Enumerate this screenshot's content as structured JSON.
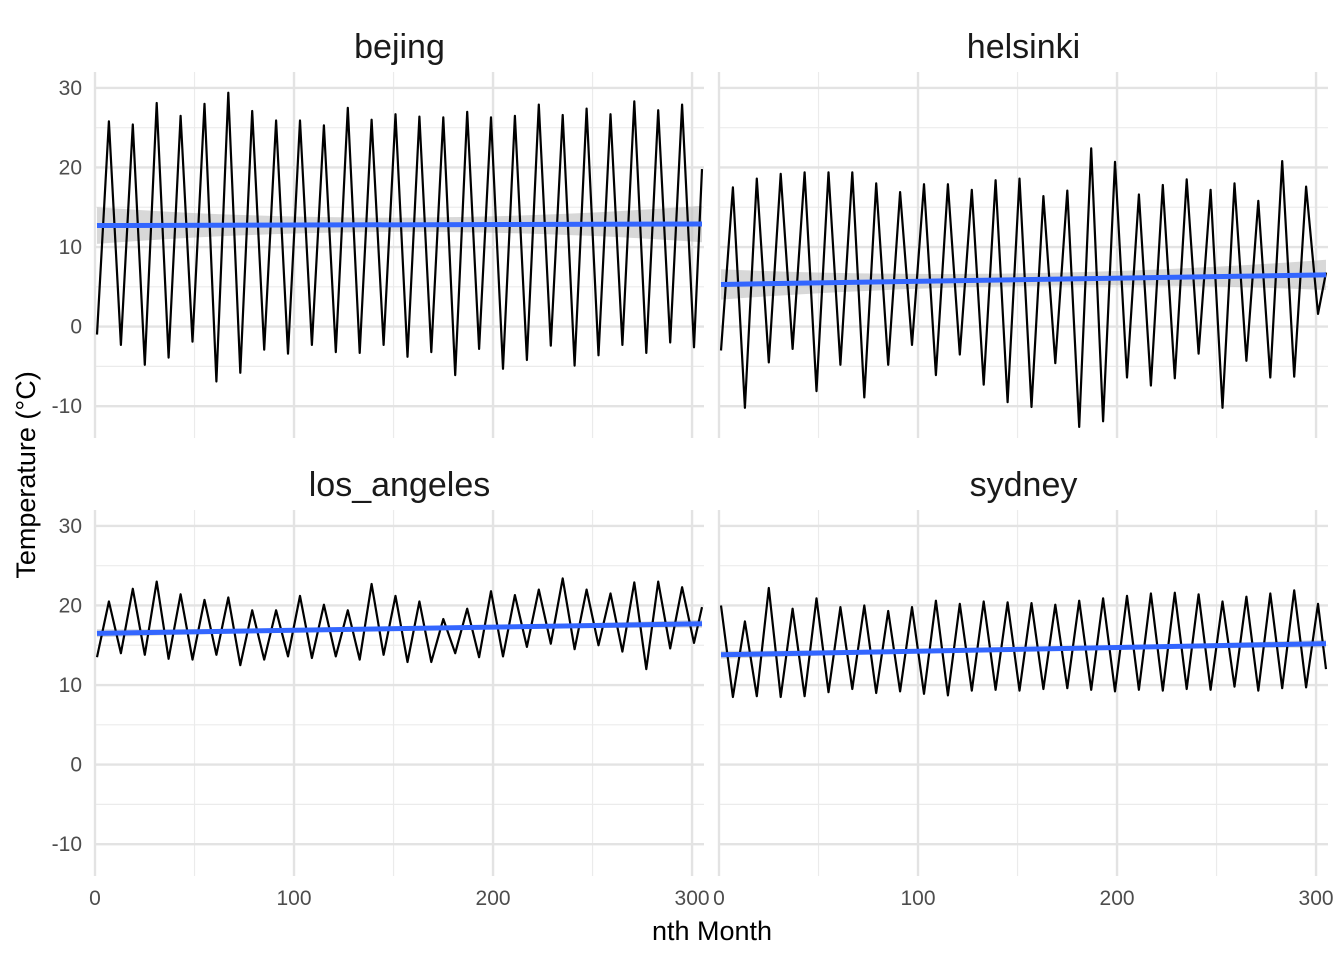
{
  "chart_data": {
    "type": "line",
    "facets": [
      "bejing",
      "helsinki",
      "los_angeles",
      "sydney"
    ],
    "xlabel": "nth Month",
    "ylabel": "Temperature (°C)",
    "xlim": [
      0,
      306
    ],
    "ylim": [
      -14,
      32
    ],
    "x_ticks": [
      0,
      100,
      200,
      300
    ],
    "y_ticks": [
      -10,
      0,
      10,
      20,
      30
    ],
    "grid": true,
    "series_colors": {
      "temperature": "#000000",
      "trend": "#3366FF",
      "confidence_band": "#BEBEBE"
    },
    "panels": [
      {
        "name": "bejing",
        "x": [
          1,
          7,
          13,
          19,
          25,
          31,
          37,
          43,
          49,
          55,
          61,
          67,
          73,
          79,
          85,
          91,
          97,
          103,
          109,
          115,
          121,
          127,
          133,
          139,
          145,
          151,
          157,
          163,
          169,
          175,
          181,
          187,
          193,
          199,
          205,
          211,
          217,
          223,
          229,
          235,
          241,
          247,
          253,
          259,
          265,
          271,
          277,
          283,
          289,
          295,
          301,
          305
        ],
        "y": [
          -1,
          25.8,
          -2.3,
          25.4,
          -4.8,
          28.1,
          -3.9,
          26.5,
          -1.9,
          28,
          -6.9,
          29.4,
          -5.8,
          27.1,
          -2.9,
          25.9,
          -3.4,
          25.9,
          -2.3,
          25.3,
          -3.2,
          27.5,
          -3.3,
          26,
          -2.3,
          26.7,
          -3.8,
          26.4,
          -3.2,
          26.3,
          -6.1,
          27,
          -2.8,
          26.3,
          -5.3,
          26.5,
          -4.2,
          27.9,
          -2.4,
          26.6,
          -4.9,
          27.4,
          -3.6,
          26.7,
          -2.3,
          28.3,
          -3.3,
          27.2,
          -2,
          27.9,
          -2.6,
          19.8
        ],
        "trend_start": 12.7,
        "trend_end": 12.9,
        "band_halfwidth_start": 2.3,
        "band_halfwidth_mid": 0.9,
        "band_halfwidth_end": 2.3
      },
      {
        "name": "helsinki",
        "x": [
          1,
          7,
          13,
          19,
          25,
          31,
          37,
          43,
          49,
          55,
          61,
          67,
          73,
          79,
          85,
          91,
          97,
          103,
          109,
          115,
          121,
          127,
          133,
          139,
          145,
          151,
          157,
          163,
          169,
          175,
          181,
          187,
          193,
          199,
          205,
          211,
          217,
          223,
          229,
          235,
          241,
          247,
          253,
          259,
          265,
          271,
          277,
          283,
          289,
          295,
          301,
          305
        ],
        "y": [
          -3,
          17.5,
          -10.2,
          18.6,
          -4.5,
          19.2,
          -2.8,
          19.4,
          -8.1,
          19.4,
          -4.8,
          19.4,
          -8.9,
          18,
          -4.8,
          16.9,
          -2.3,
          17.9,
          -6.1,
          17.9,
          -3.5,
          17.2,
          -7.3,
          18.4,
          -9.5,
          18.6,
          -10.1,
          16.4,
          -4.6,
          17.1,
          -12.6,
          22.4,
          -11.9,
          20.7,
          -6.4,
          16.6,
          -7.4,
          17.8,
          -6.5,
          18.5,
          -3.4,
          17.2,
          -10.2,
          18,
          -4.3,
          15.8,
          -6.4,
          20.8,
          -6.3,
          17.6,
          1.6,
          6.8
        ],
        "trend_start": 5.3,
        "trend_end": 6.5,
        "band_halfwidth_start": 1.9,
        "band_halfwidth_mid": 0.8,
        "band_halfwidth_end": 1.9
      },
      {
        "name": "los_angeles",
        "x": [
          1,
          7,
          13,
          19,
          25,
          31,
          37,
          43,
          49,
          55,
          61,
          67,
          73,
          79,
          85,
          91,
          97,
          103,
          109,
          115,
          121,
          127,
          133,
          139,
          145,
          151,
          157,
          163,
          169,
          175,
          181,
          187,
          193,
          199,
          205,
          211,
          217,
          223,
          229,
          235,
          241,
          247,
          253,
          259,
          265,
          271,
          277,
          283,
          289,
          295,
          301,
          305
        ],
        "y": [
          13.5,
          20.5,
          14,
          22.1,
          13.8,
          23,
          13.3,
          21.4,
          13.2,
          20.7,
          13.8,
          21,
          12.5,
          19.4,
          13.2,
          19.4,
          13.6,
          21.2,
          13.4,
          20.1,
          13.6,
          19.4,
          13.2,
          22.7,
          13.8,
          21.2,
          12.9,
          20.5,
          12.9,
          18.3,
          14,
          19.6,
          13.5,
          21.8,
          13.6,
          21.3,
          14.8,
          22,
          15.2,
          23.4,
          14.5,
          22,
          15,
          21.5,
          14.2,
          22.9,
          12,
          23,
          14.6,
          22.3,
          15.3,
          19.8
        ],
        "trend_start": 16.5,
        "trend_end": 17.7,
        "band_halfwidth_start": 0.5,
        "band_halfwidth_mid": 0.2,
        "band_halfwidth_end": 0.5
      },
      {
        "name": "sydney",
        "x": [
          1,
          7,
          13,
          19,
          25,
          31,
          37,
          43,
          49,
          55,
          61,
          67,
          73,
          79,
          85,
          91,
          97,
          103,
          109,
          115,
          121,
          127,
          133,
          139,
          145,
          151,
          157,
          163,
          169,
          175,
          181,
          187,
          193,
          199,
          205,
          211,
          217,
          223,
          229,
          235,
          241,
          247,
          253,
          259,
          265,
          271,
          277,
          283,
          289,
          295,
          301,
          305
        ],
        "y": [
          20,
          8.5,
          18,
          8.6,
          22.2,
          8.5,
          19.6,
          8.6,
          20.9,
          9.1,
          19.8,
          9.5,
          20,
          9,
          19.3,
          9.2,
          19.8,
          8.9,
          20.6,
          8.7,
          20.2,
          9.3,
          20.5,
          9.4,
          20.4,
          9.3,
          20.3,
          9.5,
          20.1,
          9.6,
          20.6,
          9.4,
          20.9,
          9.2,
          21.2,
          9.4,
          21.5,
          9.3,
          21.6,
          9.5,
          21.4,
          9.4,
          20.5,
          9.8,
          21.1,
          9.3,
          21.5,
          9.6,
          21.9,
          9.7,
          20.2,
          12
        ],
        "trend_start": 13.8,
        "trend_end": 15.2,
        "band_halfwidth_start": 0.5,
        "band_halfwidth_mid": 0.2,
        "band_halfwidth_end": 0.5
      }
    ]
  }
}
